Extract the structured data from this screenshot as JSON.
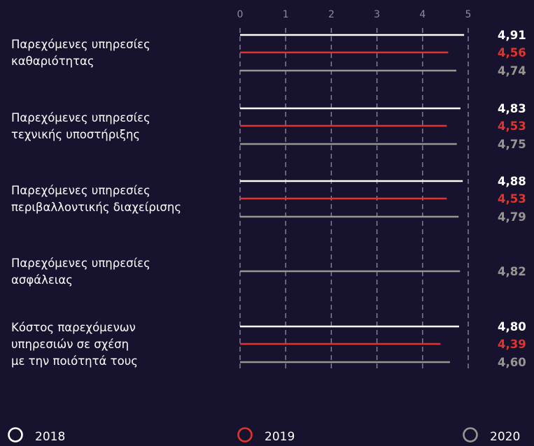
{
  "chart_data": {
    "type": "bar",
    "orientation": "horizontal",
    "xlim": [
      0,
      5
    ],
    "x_ticks": [
      "0",
      "1",
      "2",
      "3",
      "4",
      "5"
    ],
    "grid": "vertical dashed",
    "legend_position": "bottom",
    "categories": [
      [
        "Παρεχόμενες υπηρεσίες",
        "καθαριότητας"
      ],
      [
        "Παρεχόμενες υπηρεσίες",
        "τεχνικής υποστήριξης"
      ],
      [
        "Παρεχόμενες υπηρεσίες",
        "περιβαλλοντικής διαχείρισης"
      ],
      [
        "Παρεχόμενες υπηρεσίες",
        "ασφάλειας"
      ],
      [
        "Κόστος παρεχόμενων",
        "υπηρεσιών σε σχέση",
        "με την ποιότητά τους"
      ]
    ],
    "series": [
      {
        "name": "2018",
        "color": "#ffffff",
        "values": [
          4.91,
          4.83,
          4.88,
          null,
          4.8
        ],
        "labels": [
          "4,91",
          "4,83",
          "4,88",
          null,
          "4,80"
        ]
      },
      {
        "name": "2019",
        "color": "#e0342c",
        "values": [
          4.56,
          4.53,
          4.53,
          null,
          4.39
        ],
        "labels": [
          "4,56",
          "4,53",
          "4,53",
          null,
          "4,39"
        ]
      },
      {
        "name": "2020",
        "color": "#9a9590",
        "values": [
          4.74,
          4.75,
          4.79,
          4.82,
          4.6
        ],
        "labels": [
          "4,74",
          "4,75",
          "4,79",
          "4,82",
          "4,60"
        ]
      }
    ]
  }
}
